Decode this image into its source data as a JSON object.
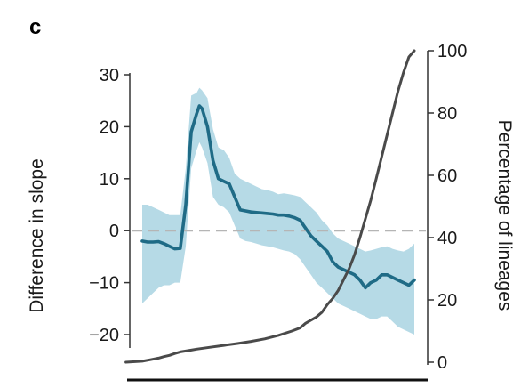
{
  "panel_label": "c",
  "chart_data": {
    "type": "line",
    "title": "",
    "left_axis": {
      "label": "Difference in slope",
      "ylim": [
        -23,
        35
      ],
      "ticks": [
        30,
        20,
        10,
        0,
        -10,
        -20
      ],
      "tick_labels": [
        "30",
        "20",
        "10",
        "0",
        "−10",
        "−20"
      ]
    },
    "right_axis": {
      "label": "Percentage of lineages",
      "ylim": [
        0,
        100
      ],
      "ticks": [
        100,
        80,
        60,
        40,
        20,
        0
      ],
      "tick_labels": [
        "100",
        "80",
        "60",
        "40",
        "20",
        "0"
      ]
    },
    "x_axis": {
      "label": "",
      "xlim": [
        0,
        100
      ],
      "tick_labels": []
    },
    "reference_line": {
      "axis": "left",
      "value": 0,
      "style": "dashed",
      "color": "#b5b5b5"
    },
    "series": [
      {
        "axis": "left",
        "kind": "line-with-band",
        "color": "#1f6b86",
        "band_color": "#a9d3e2",
        "x": [
          0,
          2,
          4,
          6,
          8,
          10,
          12,
          14,
          16,
          18,
          20,
          21,
          22,
          24,
          26,
          28,
          30,
          32,
          34,
          36,
          38,
          40,
          42,
          44,
          46,
          48,
          50,
          52,
          54,
          56,
          58,
          60,
          62,
          64,
          66,
          68,
          70,
          72,
          74,
          76,
          78,
          80,
          82,
          84,
          86,
          88,
          90,
          92,
          94,
          96,
          98,
          100
        ],
        "values": [
          -2.0,
          -2.2,
          -2.2,
          -2.1,
          -2.5,
          -3.0,
          -3.5,
          -3.4,
          5.0,
          19.0,
          22.5,
          24.0,
          23.5,
          20.0,
          13.5,
          10.0,
          9.5,
          9.0,
          6.5,
          4.0,
          3.8,
          3.6,
          3.5,
          3.4,
          3.3,
          3.2,
          3.0,
          3.0,
          2.8,
          2.5,
          2.0,
          0.5,
          -1.0,
          -2.0,
          -3.0,
          -4.0,
          -6.0,
          -7.0,
          -7.5,
          -8.0,
          -8.5,
          -9.5,
          -11.0,
          -10.0,
          -9.5,
          -8.5,
          -8.5,
          -9.0,
          -9.5,
          -10.0,
          -10.5,
          -9.5
        ],
        "lower": [
          -14.0,
          -13.0,
          -12.0,
          -11.0,
          -10.5,
          -10.5,
          -10.0,
          -10.0,
          -3.0,
          12.0,
          15.5,
          17.0,
          16.0,
          13.0,
          6.5,
          5.0,
          4.5,
          3.5,
          1.0,
          -1.5,
          -2.0,
          -2.2,
          -2.5,
          -2.8,
          -3.0,
          -3.2,
          -3.5,
          -3.8,
          -4.0,
          -4.5,
          -5.5,
          -7.0,
          -8.5,
          -10.0,
          -11.0,
          -12.0,
          -13.0,
          -14.0,
          -14.5,
          -15.0,
          -15.5,
          -16.0,
          -16.5,
          -17.0,
          -17.0,
          -16.5,
          -16.5,
          -17.5,
          -18.5,
          -19.0,
          -19.5,
          -20.0
        ],
        "upper": [
          5.0,
          5.0,
          4.5,
          4.0,
          3.5,
          3.0,
          3.0,
          3.0,
          12.0,
          26.0,
          26.5,
          27.5,
          27.0,
          25.5,
          19.5,
          16.0,
          15.5,
          14.0,
          11.0,
          10.0,
          9.5,
          9.0,
          8.5,
          8.0,
          7.8,
          7.5,
          7.0,
          7.2,
          7.0,
          6.8,
          6.5,
          5.5,
          4.5,
          3.5,
          2.0,
          1.0,
          -0.5,
          -1.5,
          -2.0,
          -2.5,
          -3.0,
          -3.5,
          -4.0,
          -3.8,
          -3.5,
          -3.2,
          -3.0,
          -3.5,
          -3.8,
          -4.0,
          -3.5,
          -2.5
        ]
      },
      {
        "axis": "right",
        "kind": "line",
        "color": "#4a4a4a",
        "x": [
          -6,
          0,
          3,
          6,
          8,
          10,
          12,
          14,
          16,
          18,
          20,
          25,
          30,
          35,
          40,
          45,
          50,
          55,
          58,
          60,
          62,
          64,
          66,
          68,
          70,
          72,
          74,
          76,
          78,
          80,
          82,
          84,
          86,
          88,
          90,
          92,
          94,
          96,
          98,
          100
        ],
        "values": [
          0.0,
          0.3,
          0.8,
          1.3,
          1.8,
          2.2,
          2.8,
          3.3,
          3.6,
          3.9,
          4.2,
          4.8,
          5.4,
          6.0,
          6.7,
          7.5,
          8.6,
          10.0,
          11.0,
          12.5,
          13.5,
          14.5,
          16.0,
          18.5,
          20.5,
          23.0,
          26.5,
          30.0,
          34.5,
          40.0,
          46.0,
          52.0,
          59.0,
          66.0,
          73.0,
          80.0,
          87.0,
          93.0,
          98.0,
          100.0
        ]
      }
    ],
    "grid": false,
    "legend": "none"
  }
}
